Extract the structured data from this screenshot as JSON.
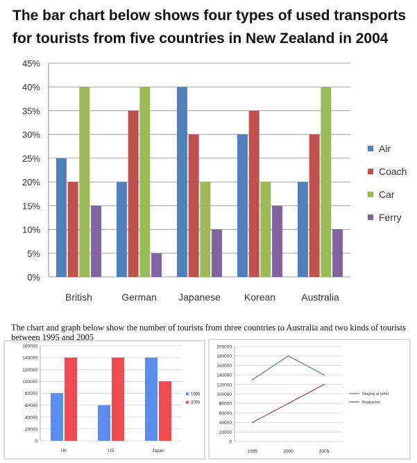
{
  "page": {
    "title": "The bar chart below shows four types of used transports for tourists from five countries in New Zealand in 2004",
    "subtitle": "The chart and graph below show the number of tourists from three countries to Australia and two kinds of tourists between 1995 and 2005"
  },
  "chart_data": [
    {
      "type": "bar",
      "categories": [
        "British",
        "German",
        "Japanese",
        "Korean",
        "Australia"
      ],
      "series": [
        {
          "name": "Air",
          "values": [
            25,
            20,
            40,
            30,
            20
          ],
          "color": "#4f81bd"
        },
        {
          "name": "Coach",
          "values": [
            20,
            35,
            30,
            35,
            30
          ],
          "color": "#c0504d"
        },
        {
          "name": "Car",
          "values": [
            40,
            40,
            20,
            20,
            40
          ],
          "color": "#9bbb59"
        },
        {
          "name": "Ferry",
          "values": [
            15,
            5,
            10,
            15,
            10
          ],
          "color": "#8064a2"
        }
      ],
      "ylim": [
        0,
        45
      ],
      "yticks": [
        "0%",
        "5%",
        "10%",
        "15%",
        "20%",
        "25%",
        "30%",
        "35%",
        "40%",
        "45%"
      ],
      "grid": true,
      "legend": "right"
    },
    {
      "type": "bar",
      "categories": [
        "UK",
        "US",
        "Japan"
      ],
      "series": [
        {
          "name": "1995",
          "values": [
            80000,
            60000,
            140000
          ],
          "color": "#5b8def"
        },
        {
          "name": "2005",
          "values": [
            140000,
            140000,
            100000
          ],
          "color": "#ef4b50"
        }
      ],
      "ylim": [
        0,
        160000
      ],
      "yticks": [
        "0",
        "20000",
        "40000",
        "60000",
        "80000",
        "100000",
        "120000",
        "140000",
        "160000"
      ],
      "grid": true,
      "legend": "right"
    },
    {
      "type": "line",
      "x": [
        "1995",
        "2000",
        "2005"
      ],
      "series": [
        {
          "name": "Staying at hotel",
          "values": [
            130000,
            180000,
            140000
          ],
          "color": "#4a7fa8"
        },
        {
          "name": "Bagpacker",
          "values": [
            40000,
            80000,
            120000
          ],
          "color": "#a0443e"
        }
      ],
      "ylim": [
        0,
        200000
      ],
      "yticks": [
        "0",
        "20000",
        "40000",
        "60000",
        "80000",
        "100000",
        "120000",
        "140000",
        "160000",
        "180000",
        "200000"
      ],
      "grid": true,
      "legend": "right"
    }
  ]
}
